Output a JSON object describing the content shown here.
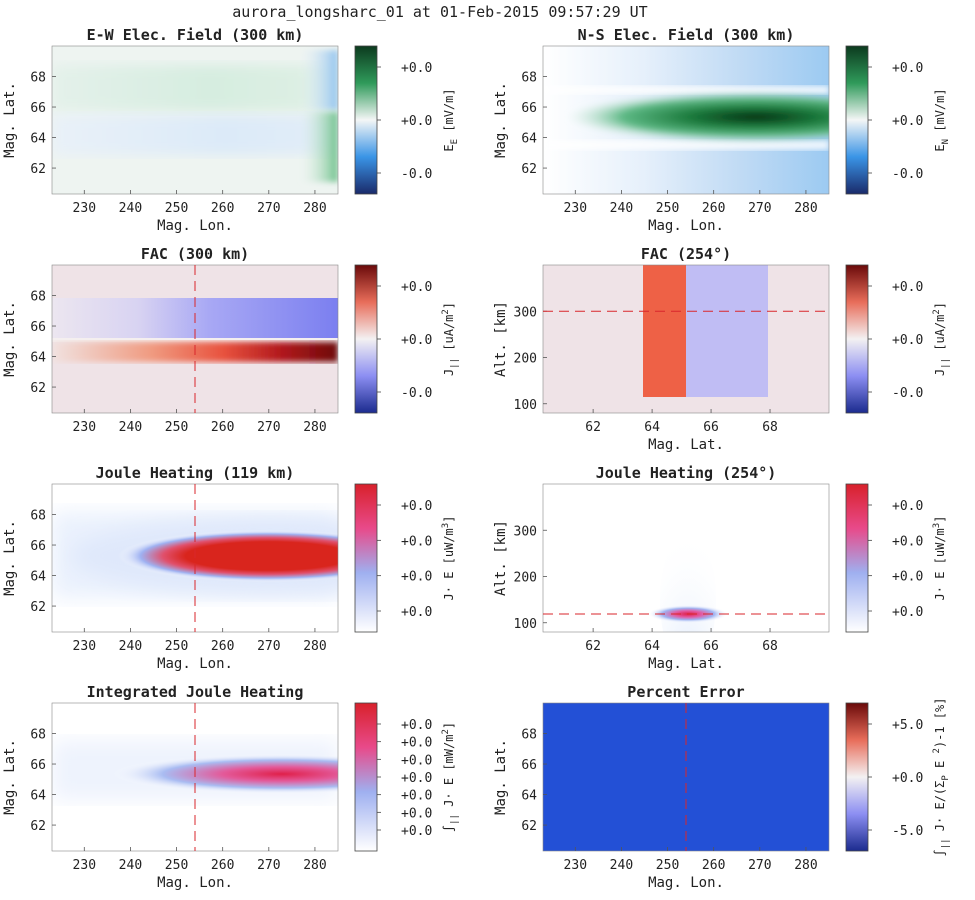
{
  "figure": {
    "title": "aurora_longsharc_01 at 01-Feb-2015 09:57:29 UT"
  },
  "chart_data": [
    {
      "type": "heatmap",
      "panel": "ew_field",
      "title": "E-W Elec. Field (300 km)",
      "xlabel": "Mag. Lon.",
      "ylabel": "Mag. Lat.",
      "xticks": [
        "230",
        "240",
        "250",
        "260",
        "270",
        "280"
      ],
      "yticks": [
        "62",
        "64",
        "66",
        "68"
      ],
      "xlim": [
        223,
        285
      ],
      "ylim": [
        60.3,
        70
      ],
      "xtick_values": [
        230,
        240,
        250,
        260,
        270,
        280
      ],
      "ytick_values": [
        62,
        64,
        66,
        68
      ],
      "colorbar": {
        "label": "E",
        "sub": "E",
        "unit": "[mV/m]",
        "ticks": [
          "+0.0",
          "+0.0",
          "-0.0"
        ],
        "colormap": "diverging-green-blue"
      }
    },
    {
      "type": "heatmap",
      "panel": "ns_field",
      "title": "N-S Elec. Field (300 km)",
      "xlabel": "Mag. Lon.",
      "ylabel": "Mag. Lat.",
      "xticks": [
        "230",
        "240",
        "250",
        "260",
        "270",
        "280"
      ],
      "yticks": [
        "62",
        "64",
        "66",
        "68"
      ],
      "xlim": [
        223,
        285
      ],
      "ylim": [
        60.3,
        70
      ],
      "xtick_values": [
        230,
        240,
        250,
        260,
        270,
        280
      ],
      "ytick_values": [
        62,
        64,
        66,
        68
      ],
      "colorbar": {
        "label": "E",
        "sub": "N",
        "unit": "[mV/m]",
        "ticks": [
          "+0.0",
          "+0.0",
          "-0.0"
        ],
        "colormap": "diverging-green-blue"
      }
    },
    {
      "type": "heatmap",
      "panel": "fac_map",
      "title": "FAC (300 km)",
      "xlabel": "",
      "ylabel": "Mag. Lat.",
      "xticks": [
        "230",
        "240",
        "250",
        "260",
        "270",
        "280"
      ],
      "yticks": [
        "62",
        "64",
        "66",
        "68"
      ],
      "xlim": [
        223,
        285
      ],
      "ylim": [
        60.3,
        70
      ],
      "xtick_values": [
        230,
        240,
        250,
        260,
        270,
        280
      ],
      "ytick_values": [
        62,
        64,
        66,
        68
      ],
      "cut_line": {
        "axis": "x",
        "value": 254
      },
      "colorbar": {
        "label": "J",
        "sub": "||",
        "unit": "[uA/m",
        "sup": "2",
        "close": "]",
        "ticks": [
          "+0.0",
          "+0.0",
          "-0.0"
        ],
        "colormap": "diverging-red-blue"
      }
    },
    {
      "type": "heatmap",
      "panel": "fac_alt",
      "title": "FAC (254°)",
      "xlabel": "Mag. Lat.",
      "ylabel": "Alt. [km]",
      "xticks": [
        "62",
        "64",
        "66",
        "68"
      ],
      "yticks": [
        "100",
        "200",
        "300"
      ],
      "xlim": [
        60.3,
        70
      ],
      "ylim": [
        80,
        400
      ],
      "xtick_values": [
        62,
        64,
        66,
        68
      ],
      "ytick_values": [
        100,
        200,
        300
      ],
      "cut_line": {
        "axis": "y",
        "value": 300
      },
      "colorbar": {
        "label": "J",
        "sub": "||",
        "unit": "[uA/m",
        "sup": "2",
        "close": "]",
        "ticks": [
          "+0.0",
          "+0.0",
          "-0.0"
        ],
        "colormap": "diverging-red-blue"
      }
    },
    {
      "type": "heatmap",
      "panel": "joule_map",
      "title": "Joule Heating (119 km)",
      "xlabel": "Mag. Lon.",
      "ylabel": "Mag. Lat.",
      "xticks": [
        "230",
        "240",
        "250",
        "260",
        "270",
        "280"
      ],
      "yticks": [
        "62",
        "64",
        "66",
        "68"
      ],
      "xlim": [
        223,
        285
      ],
      "ylim": [
        60.3,
        70
      ],
      "xtick_values": [
        230,
        240,
        250,
        260,
        270,
        280
      ],
      "ytick_values": [
        62,
        64,
        66,
        68
      ],
      "cut_line": {
        "axis": "x",
        "value": 254
      },
      "colorbar": {
        "label": "J· E",
        "sub": "",
        "unit": "[uW/m",
        "sup": "3",
        "close": "]",
        "ticks": [
          "+0.0",
          "+0.0",
          "+0.0",
          "+0.0"
        ],
        "colormap": "sequential-white-blue-red"
      }
    },
    {
      "type": "heatmap",
      "panel": "joule_alt",
      "title": "Joule Heating (254°)",
      "xlabel": "Mag. Lat.",
      "ylabel": "Alt. [km]",
      "xticks": [
        "62",
        "64",
        "66",
        "68"
      ],
      "yticks": [
        "100",
        "200",
        "300"
      ],
      "xlim": [
        60.3,
        70
      ],
      "ylim": [
        80,
        400
      ],
      "xtick_values": [
        62,
        64,
        66,
        68
      ],
      "ytick_values": [
        100,
        200,
        300
      ],
      "cut_line": {
        "axis": "y",
        "value": 119
      },
      "colorbar": {
        "label": "J· E",
        "sub": "",
        "unit": "[uW/m",
        "sup": "3",
        "close": "]",
        "ticks": [
          "+0.0",
          "+0.0",
          "+0.0",
          "+0.0"
        ],
        "colormap": "sequential-white-blue-red"
      }
    },
    {
      "type": "heatmap",
      "panel": "integrated",
      "title": "Integrated Joule Heating",
      "xlabel": "Mag. Lon.",
      "ylabel": "Mag. Lat.",
      "xticks": [
        "230",
        "240",
        "250",
        "260",
        "270",
        "280"
      ],
      "yticks": [
        "62",
        "64",
        "66",
        "68"
      ],
      "xlim": [
        223,
        285
      ],
      "ylim": [
        60.3,
        70
      ],
      "xtick_values": [
        230,
        240,
        250,
        260,
        270,
        280
      ],
      "ytick_values": [
        62,
        64,
        66,
        68
      ],
      "cut_line": {
        "axis": "x",
        "value": 254
      },
      "colorbar": {
        "label": "∫",
        "sub": "||",
        "label2": " J· E",
        "unit": "[mW/m",
        "sup": "2",
        "close": "]",
        "ticks": [
          "+0.0",
          "+0.0",
          "+0.0",
          "+0.0",
          "+0.0",
          "+0.0",
          "+0.0"
        ],
        "colormap": "sequential-white-blue-red"
      }
    },
    {
      "type": "heatmap",
      "panel": "percent_error",
      "title": "Percent Error",
      "xlabel": "Mag. Lon.",
      "ylabel": "Mag. Lat.",
      "xticks": [
        "230",
        "240",
        "250",
        "260",
        "270",
        "280"
      ],
      "yticks": [
        "62",
        "64",
        "66",
        "68"
      ],
      "xlim": [
        223,
        285
      ],
      "ylim": [
        60.3,
        70
      ],
      "xtick_values": [
        230,
        240,
        250,
        260,
        270,
        280
      ],
      "ytick_values": [
        62,
        64,
        66,
        68
      ],
      "cut_line": {
        "axis": "x",
        "value": 254
      },
      "colorbar": {
        "label": "∫",
        "sub": "||",
        "label2": " J· E/(Σ",
        "sub2": "P",
        "label3": " E",
        "sup": "2",
        "close": ")-1 [%]",
        "ticks": [
          "+5.0",
          "+0.0",
          "-5.0"
        ],
        "colormap": "diverging-red-blue"
      }
    }
  ]
}
